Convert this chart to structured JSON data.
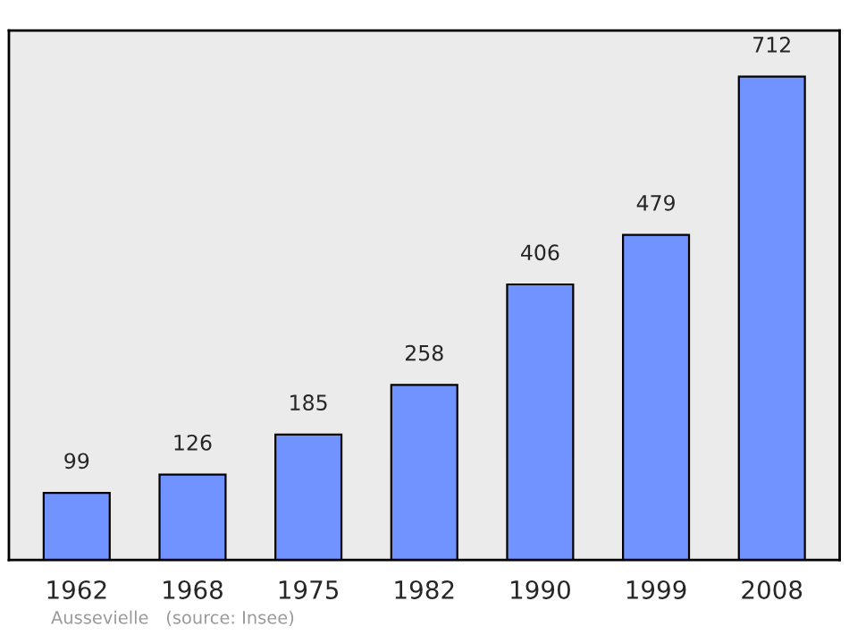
{
  "chart_data": {
    "type": "bar",
    "categories": [
      "1962",
      "1968",
      "1975",
      "1982",
      "1990",
      "1999",
      "2008"
    ],
    "values": [
      99,
      126,
      185,
      258,
      406,
      479,
      712
    ],
    "color": "#7093ff",
    "ylim": [
      0,
      780
    ],
    "tick_labels": "x",
    "data_labels": true,
    "grid": false,
    "legend": false,
    "annotations": [
      "Aussevielle",
      "(source: Insee)"
    ]
  }
}
